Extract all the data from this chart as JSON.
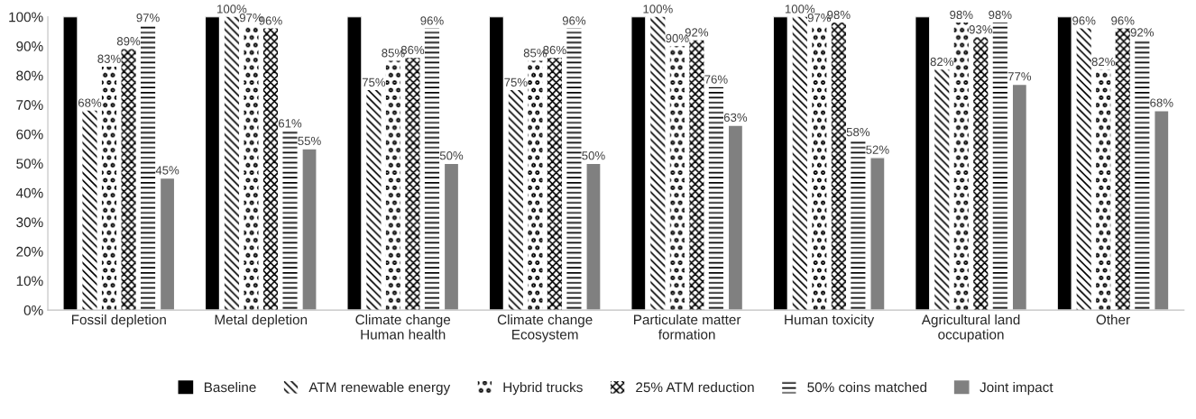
{
  "chart_data": {
    "type": "bar",
    "categories": [
      "Fossil depletion",
      "Metal depletion",
      "Climate change\nHuman health",
      "Climate change\nEcosystem",
      "Particulate matter\nformation",
      "Human toxicity",
      "Agricultural land\noccupation",
      "Other"
    ],
    "series": [
      {
        "name": "Baseline",
        "color": "#000000",
        "values": [
          100,
          100,
          100,
          100,
          100,
          100,
          100,
          100
        ],
        "value_labels": [
          null,
          null,
          null,
          null,
          null,
          null,
          null,
          null
        ]
      },
      {
        "name": "ATM renewable energy",
        "color": "#000000",
        "values": [
          68,
          100,
          75,
          75,
          100,
          100,
          82,
          96
        ],
        "value_labels": [
          "68%",
          "100%",
          "75%",
          "75%",
          "100%",
          "100%",
          "82%",
          "96%"
        ]
      },
      {
        "name": "Hybrid trucks",
        "color": "#000000",
        "values": [
          83,
          97,
          85,
          85,
          90,
          97,
          98,
          82
        ],
        "value_labels": [
          "83%",
          "97%",
          "85%",
          "85%",
          "90%",
          "97%",
          "98%",
          "82%"
        ]
      },
      {
        "name": "25% ATM reduction",
        "color": "#000000",
        "values": [
          89,
          96,
          86,
          86,
          92,
          98,
          93,
          96
        ],
        "value_labels": [
          "89%",
          "96%",
          "86%",
          "86%",
          "92%",
          "98%",
          "93%",
          "96%"
        ]
      },
      {
        "name": "50% coins matched",
        "color": "#000000",
        "values": [
          97,
          61,
          96,
          96,
          76,
          58,
          98,
          92
        ],
        "value_labels": [
          "97%",
          "61%",
          "96%",
          "96%",
          "76%",
          "58%",
          "98%",
          "92%"
        ]
      },
      {
        "name": "Joint impact",
        "color": "#808080",
        "values": [
          45,
          55,
          50,
          50,
          63,
          52,
          77,
          68
        ],
        "value_labels": [
          "45%",
          "55%",
          "50%",
          "50%",
          "63%",
          "52%",
          "77%",
          "68%"
        ]
      }
    ],
    "ylim": [
      0,
      100
    ],
    "yticks": [
      {
        "value": 0,
        "label": "0%"
      },
      {
        "value": 10,
        "label": "10%"
      },
      {
        "value": 20,
        "label": "20%"
      },
      {
        "value": 30,
        "label": "30%"
      },
      {
        "value": 40,
        "label": "40%"
      },
      {
        "value": 50,
        "label": "50%"
      },
      {
        "value": 60,
        "label": "60%"
      },
      {
        "value": 70,
        "label": "70%"
      },
      {
        "value": 80,
        "label": "80%"
      },
      {
        "value": 90,
        "label": "90%"
      },
      {
        "value": 100,
        "label": "100%"
      }
    ],
    "grid": false,
    "legend": "bottom"
  }
}
